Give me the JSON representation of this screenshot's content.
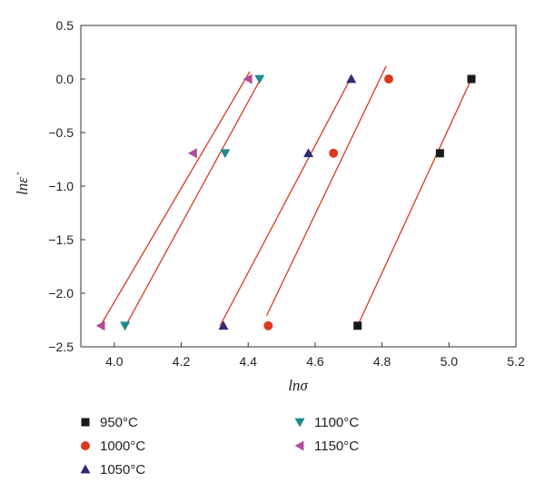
{
  "chart_data": {
    "type": "scatter",
    "title": "",
    "xlabel": "lnσ",
    "ylabel": "lnε̇",
    "xlim": [
      3.9,
      5.2
    ],
    "ylim": [
      -2.5,
      0.5
    ],
    "xticks": [
      "4.0",
      "4.2",
      "4.4",
      "4.6",
      "4.8",
      "5.0",
      "5.2"
    ],
    "yticks": [
      "0.5",
      "0.0",
      "−0.5",
      "−1.0",
      "−1.5",
      "−2.0",
      "−2.5"
    ],
    "grid": false,
    "legend_position": "bottom",
    "series": [
      {
        "name": "950°C",
        "marker": "square",
        "color": "#1a1a1a",
        "x": [
          4.727,
          4.973,
          5.067
        ],
        "y": [
          -2.303,
          -0.693,
          0.0
        ],
        "fit": {
          "x": [
            4.727,
            5.067
          ],
          "y": [
            -2.303,
            0.0
          ]
        }
      },
      {
        "name": "1000°C",
        "marker": "circle",
        "color": "#d93a1f",
        "x": [
          4.46,
          4.655,
          4.82
        ],
        "y": [
          -2.303,
          -0.693,
          0.0
        ],
        "fit": {
          "x": [
            4.455,
            4.812
          ],
          "y": [
            -2.21,
            0.12
          ]
        }
      },
      {
        "name": "1050°C",
        "marker": "triangle-up",
        "color": "#2e2a7a",
        "x": [
          4.326,
          4.58,
          4.708
        ],
        "y": [
          -2.303,
          -0.693,
          0.0
        ],
        "fit": {
          "x": [
            4.316,
            4.705
          ],
          "y": [
            -2.303,
            0.0
          ]
        }
      },
      {
        "name": "1100°C",
        "marker": "triangle-down",
        "color": "#1f8a8a",
        "x": [
          4.032,
          4.331,
          4.434
        ],
        "y": [
          -2.303,
          -0.693,
          0.0
        ],
        "fit": {
          "x": [
            4.034,
            4.437
          ],
          "y": [
            -2.303,
            0.0
          ]
        }
      },
      {
        "name": "1150°C",
        "marker": "triangle-left",
        "color": "#b34a9c",
        "x": [
          3.96,
          4.235,
          4.4
        ],
        "y": [
          -2.303,
          -0.693,
          0.0
        ],
        "fit": {
          "x": [
            3.961,
            4.405
          ],
          "y": [
            -2.29,
            0.07
          ]
        }
      }
    ]
  },
  "fit_line_color": "#d93a1f"
}
